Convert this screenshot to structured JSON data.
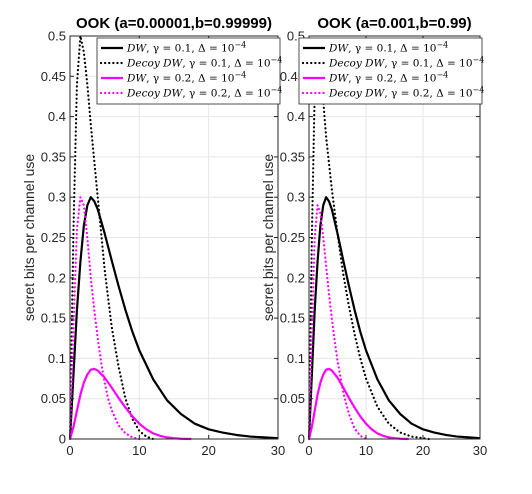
{
  "chart_data": [
    {
      "type": "line",
      "title": "OOK (a=0.00001,b=0.99999)",
      "xlabel": "",
      "ylabel": "secret bits per channel use",
      "xlim": [
        0,
        30
      ],
      "ylim": [
        0,
        0.5
      ],
      "xticks": [
        "0",
        "10",
        "20",
        "30"
      ],
      "yticks": [
        "0",
        "0.05",
        "0.1",
        "0.15",
        "0.2",
        "0.25",
        "0.3",
        "0.35",
        "0.4",
        "0.45",
        "0.5"
      ],
      "grid": true,
      "legend_position": "top-right",
      "series": [
        {
          "name": "DW, γ = 0.1, Δ = 10⁻⁴",
          "color": "#000000",
          "style": "solid",
          "x": [
            0,
            0.5,
            1,
            1.5,
            2,
            2.5,
            3,
            3.5,
            4,
            5,
            6,
            7,
            8,
            9,
            10,
            12,
            14,
            16,
            18,
            20,
            22,
            24,
            26,
            28,
            30
          ],
          "y": [
            0,
            0.08,
            0.16,
            0.22,
            0.265,
            0.29,
            0.3,
            0.295,
            0.285,
            0.255,
            0.222,
            0.19,
            0.16,
            0.133,
            0.11,
            0.074,
            0.048,
            0.031,
            0.019,
            0.012,
            0.008,
            0.005,
            0.003,
            0.002,
            0.001
          ]
        },
        {
          "name": "Decoy DW, γ = 0.1, Δ = 10⁻⁴",
          "color": "#000000",
          "style": "dotted",
          "x": [
            0,
            0.5,
            1,
            1.5,
            2,
            2.5,
            3,
            4,
            5,
            6,
            7,
            8,
            9,
            10,
            11,
            12
          ],
          "y": [
            0,
            0.26,
            0.44,
            0.5,
            0.48,
            0.44,
            0.39,
            0.3,
            0.21,
            0.14,
            0.09,
            0.05,
            0.025,
            0.01,
            0.003,
            0
          ]
        },
        {
          "name": "DW, γ = 0.2, Δ = 10⁻⁴",
          "color": "#ff00ff",
          "style": "solid",
          "x": [
            0,
            0.5,
            1,
            1.5,
            2,
            2.5,
            3,
            3.5,
            4,
            5,
            6,
            7,
            8,
            9,
            10,
            11,
            12,
            13,
            14,
            15,
            16,
            17.5
          ],
          "y": [
            0,
            0.015,
            0.035,
            0.055,
            0.07,
            0.08,
            0.086,
            0.087,
            0.085,
            0.076,
            0.064,
            0.051,
            0.039,
            0.028,
            0.019,
            0.012,
            0.007,
            0.004,
            0.002,
            0.001,
            0.0003,
            0
          ]
        },
        {
          "name": "Decoy DW, γ = 0.2, Δ = 10⁻⁴",
          "color": "#ff00ff",
          "style": "dotted",
          "x": [
            0,
            0.5,
            1,
            1.5,
            2,
            2.5,
            3,
            3.5,
            4,
            4.5,
            5,
            5.5,
            6,
            7,
            8,
            9,
            10
          ],
          "y": [
            0,
            0.14,
            0.26,
            0.3,
            0.29,
            0.25,
            0.2,
            0.16,
            0.125,
            0.095,
            0.07,
            0.05,
            0.036,
            0.017,
            0.007,
            0.002,
            0
          ]
        }
      ]
    },
    {
      "type": "line",
      "title": "OOK (a=0.001,b=0.99)",
      "xlabel": "",
      "ylabel": "secret bits per channel use",
      "xlim": [
        0,
        30
      ],
      "ylim": [
        0,
        0.5
      ],
      "xticks": [
        "0",
        "10",
        "20",
        "30"
      ],
      "yticks": [
        "0",
        "0.05",
        "0.1",
        "0.15",
        "0.2",
        "0.25",
        "0.3",
        "0.35",
        "0.4",
        "0.45",
        "0.5"
      ],
      "grid": true,
      "legend_position": "top-right",
      "series": [
        {
          "name": "DW, γ = 0.1, Δ = 10⁻⁴",
          "color": "#000000",
          "style": "solid",
          "x": [
            0,
            0.5,
            1,
            1.5,
            2,
            2.5,
            3,
            3.5,
            4,
            5,
            6,
            7,
            8,
            9,
            10,
            12,
            14,
            16,
            18,
            20,
            22,
            24,
            26,
            28,
            30
          ],
          "y": [
            0,
            0.08,
            0.16,
            0.22,
            0.265,
            0.29,
            0.3,
            0.295,
            0.285,
            0.255,
            0.222,
            0.19,
            0.16,
            0.133,
            0.11,
            0.074,
            0.048,
            0.031,
            0.019,
            0.012,
            0.008,
            0.005,
            0.003,
            0.002,
            0.001
          ]
        },
        {
          "name": "Decoy DW, γ = 0.1, Δ = 10⁻⁴",
          "color": "#000000",
          "style": "dotted",
          "x": [
            0,
            0.5,
            1,
            1.5,
            2,
            2.5,
            3,
            4,
            5,
            6,
            7,
            8,
            9,
            10,
            12,
            14,
            16,
            18,
            20,
            21
          ],
          "y": [
            0,
            0.25,
            0.43,
            0.49,
            0.47,
            0.42,
            0.375,
            0.31,
            0.255,
            0.205,
            0.165,
            0.13,
            0.1,
            0.075,
            0.04,
            0.019,
            0.008,
            0.003,
            0.001,
            0
          ]
        },
        {
          "name": "DW, γ = 0.2, Δ = 10⁻⁴",
          "color": "#ff00ff",
          "style": "solid",
          "x": [
            0,
            0.5,
            1,
            1.5,
            2,
            2.5,
            3,
            3.5,
            4,
            5,
            6,
            7,
            8,
            9,
            10,
            11,
            12,
            13,
            14,
            15,
            16,
            17.5
          ],
          "y": [
            0,
            0.015,
            0.035,
            0.055,
            0.07,
            0.08,
            0.086,
            0.087,
            0.085,
            0.076,
            0.064,
            0.051,
            0.039,
            0.028,
            0.019,
            0.012,
            0.007,
            0.004,
            0.002,
            0.001,
            0.0003,
            0
          ]
        },
        {
          "name": "Decoy DW, γ = 0.2, Δ = 10⁻⁴",
          "color": "#ff00ff",
          "style": "dotted",
          "x": [
            0,
            0.5,
            1,
            1.5,
            2,
            2.5,
            3,
            3.5,
            4,
            4.5,
            5,
            6,
            7,
            8,
            9,
            10
          ],
          "y": [
            0,
            0.13,
            0.25,
            0.29,
            0.28,
            0.25,
            0.215,
            0.18,
            0.15,
            0.122,
            0.097,
            0.058,
            0.031,
            0.013,
            0.004,
            0
          ]
        }
      ]
    }
  ]
}
